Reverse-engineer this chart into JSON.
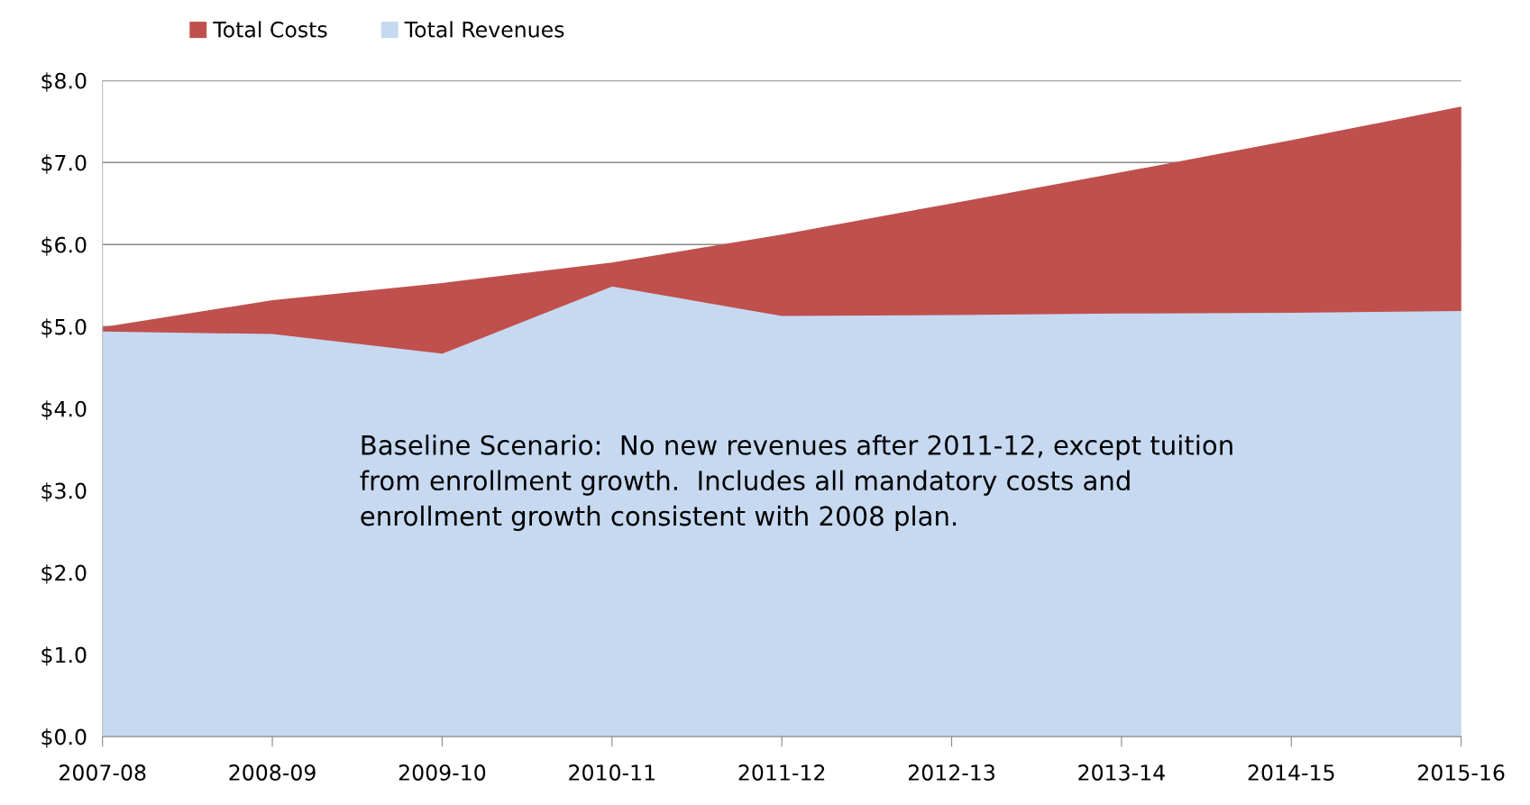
{
  "chart_data": {
    "type": "area",
    "categories": [
      "2007-08",
      "2008-09",
      "2009-10",
      "2010-11",
      "2011-12",
      "2012-13",
      "2013-14",
      "2014-15",
      "2015-16"
    ],
    "series": [
      {
        "name": "Total Costs",
        "color": "#c0504d",
        "values": [
          4.98,
          5.31,
          5.52,
          5.77,
          6.11,
          6.49,
          6.87,
          7.26,
          7.67
        ]
      },
      {
        "name": "Total Revenues",
        "color": "#c6d9f1",
        "values": [
          4.95,
          4.92,
          4.68,
          5.5,
          5.14,
          5.15,
          5.17,
          5.18,
          5.2
        ]
      }
    ],
    "ylim": [
      0,
      8
    ],
    "yticks": [
      {
        "value": 0,
        "label": "$0.0"
      },
      {
        "value": 1,
        "label": "$1.0"
      },
      {
        "value": 2,
        "label": "$2.0"
      },
      {
        "value": 3,
        "label": "$3.0"
      },
      {
        "value": 4,
        "label": "$4.0"
      },
      {
        "value": 5,
        "label": "$5.0"
      },
      {
        "value": 6,
        "label": "$6.0"
      },
      {
        "value": 7,
        "label": "$7.0"
      },
      {
        "value": 8,
        "label": "$8.0"
      }
    ],
    "grid": "y",
    "legend": "top left",
    "annotations": [
      "Baseline Scenario:  No new revenues after 2011-12, except tuition from enrollment growth.  Includes all mandatory costs and enrollment growth consistent with 2008 plan."
    ]
  }
}
